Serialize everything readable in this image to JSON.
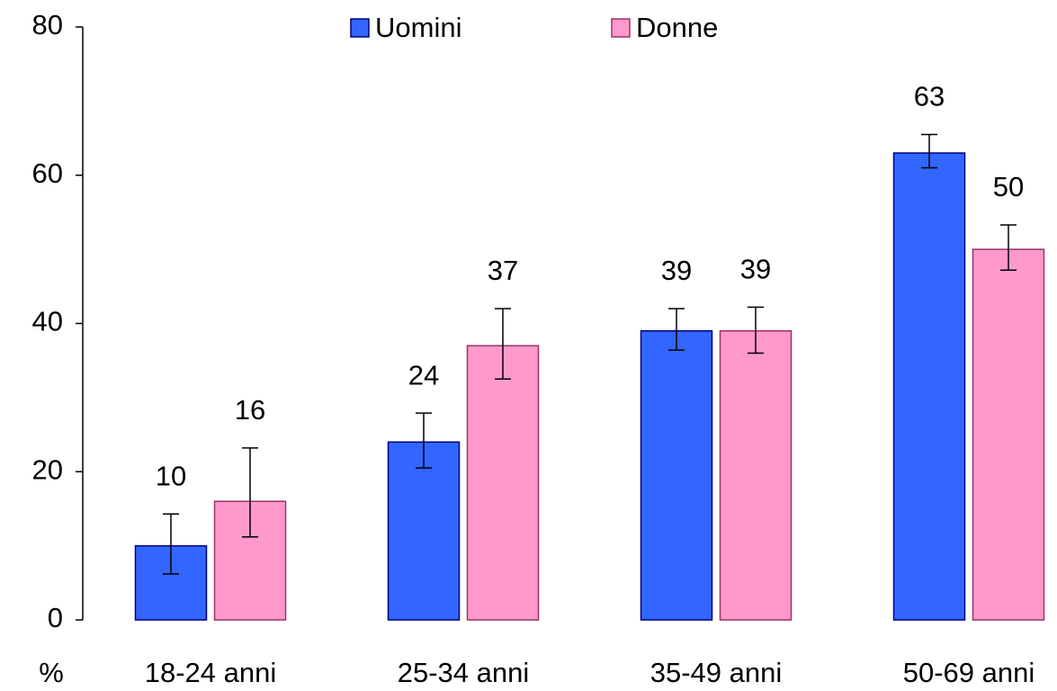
{
  "chart_data": {
    "type": "bar",
    "y_label": "%",
    "categories": [
      "18-24 anni",
      "25-34 anni",
      "35-49 anni",
      "50-69 anni"
    ],
    "series": [
      {
        "name": "Uomini",
        "color": "#3366ff",
        "edge": "#000080",
        "values": [
          10,
          24,
          39,
          63
        ],
        "ci": [
          [
            6.2,
            14.3
          ],
          [
            20.5,
            27.9
          ],
          [
            36.4,
            42.0
          ],
          [
            61.0,
            65.5
          ]
        ]
      },
      {
        "name": "Donne",
        "color": "#ff99cc",
        "edge": "#993366",
        "values": [
          16,
          37,
          39,
          50
        ],
        "ci": [
          [
            11.2,
            23.2
          ],
          [
            32.5,
            42.0
          ],
          [
            36.0,
            42.2
          ],
          [
            47.2,
            53.3
          ]
        ]
      }
    ],
    "ylim": [
      0,
      80
    ],
    "yticks": [
      0,
      20,
      40,
      60,
      80
    ],
    "legend": "top"
  }
}
